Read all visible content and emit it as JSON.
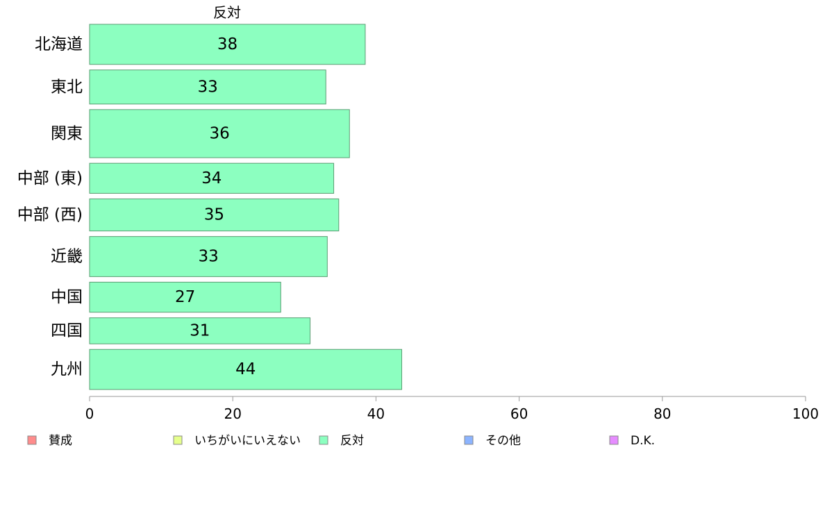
{
  "chart_data": {
    "type": "bar",
    "orientation": "horizontal",
    "title": "反対",
    "categories": [
      "北海道",
      "東北",
      "関東",
      "中部 (東)",
      "中部 (西)",
      "近畿",
      "中国",
      "四国",
      "九州"
    ],
    "series": [
      {
        "name": "反対",
        "values": [
          38.5,
          33,
          36.3,
          34.1,
          34.8,
          33.2,
          26.7,
          30.8,
          43.6
        ],
        "labels": [
          "38",
          "33",
          "36",
          "34",
          "35",
          "33",
          "27",
          "31",
          "44"
        ],
        "color": "#8cffc0"
      }
    ],
    "row_weights": [
      1.0,
      0.85,
      1.2,
      0.75,
      0.8,
      1.0,
      0.75,
      0.65,
      1.0
    ],
    "xlim": [
      0,
      100
    ],
    "xticks": [
      "0",
      "20",
      "40",
      "60",
      "80",
      "100"
    ],
    "xlabel": "",
    "ylabel": "",
    "grid": false,
    "legend": {
      "position": "bottom",
      "entries": [
        {
          "label": "賛成",
          "color": "#ff8c8c"
        },
        {
          "label": "いちがいにいえない",
          "color": "#e6ff8c"
        },
        {
          "label": "反対",
          "color": "#8cffc0"
        },
        {
          "label": "その他",
          "color": "#8cb4ff"
        },
        {
          "label": "D.K.",
          "color": "#e68cff"
        }
      ]
    },
    "colors": {
      "bar_stroke": "#5a9c72",
      "axis": "#999999"
    }
  }
}
